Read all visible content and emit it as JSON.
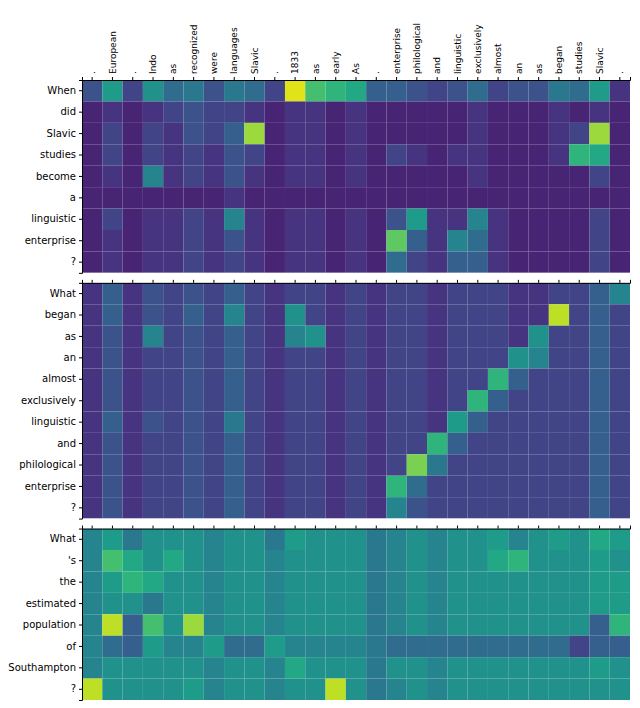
{
  "chart_data": [
    {
      "type": "heatmap",
      "x_categories": [
        ".",
        "European",
        ".",
        "Indo",
        "as",
        "recognized",
        "were",
        "languages",
        "Slavic",
        ".",
        "1833",
        "as",
        "early",
        "As",
        ".",
        "enterprise",
        "philological",
        "and",
        "linguistic",
        "exclusively",
        "almost",
        "an",
        "as",
        "began",
        "studies",
        "Slavic",
        "."
      ],
      "y_categories": [
        "When",
        "did",
        "Slavic",
        "studies",
        "become",
        "a",
        "linguistic",
        "enterprise",
        "?"
      ],
      "zlim": [
        0.0,
        1.0
      ],
      "values": [
        [
          0.25,
          0.55,
          0.2,
          0.5,
          0.35,
          0.4,
          0.25,
          0.4,
          0.35,
          0.2,
          0.95,
          0.7,
          0.65,
          0.6,
          0.3,
          0.3,
          0.25,
          0.2,
          0.25,
          0.35,
          0.2,
          0.25,
          0.25,
          0.4,
          0.35,
          0.55,
          0.15
        ],
        [
          0.1,
          0.15,
          0.1,
          0.15,
          0.2,
          0.25,
          0.2,
          0.2,
          0.15,
          0.1,
          0.15,
          0.15,
          0.1,
          0.15,
          0.1,
          0.1,
          0.1,
          0.1,
          0.1,
          0.15,
          0.1,
          0.1,
          0.1,
          0.15,
          0.1,
          0.15,
          0.1
        ],
        [
          0.1,
          0.2,
          0.1,
          0.2,
          0.15,
          0.25,
          0.2,
          0.3,
          0.85,
          0.1,
          0.15,
          0.15,
          0.1,
          0.15,
          0.1,
          0.1,
          0.1,
          0.1,
          0.1,
          0.15,
          0.1,
          0.1,
          0.1,
          0.15,
          0.2,
          0.85,
          0.1
        ],
        [
          0.1,
          0.2,
          0.1,
          0.2,
          0.15,
          0.2,
          0.15,
          0.25,
          0.2,
          0.1,
          0.15,
          0.15,
          0.1,
          0.15,
          0.1,
          0.2,
          0.15,
          0.1,
          0.15,
          0.15,
          0.1,
          0.1,
          0.1,
          0.15,
          0.65,
          0.6,
          0.1
        ],
        [
          0.1,
          0.15,
          0.1,
          0.45,
          0.15,
          0.2,
          0.15,
          0.25,
          0.15,
          0.1,
          0.15,
          0.15,
          0.1,
          0.15,
          0.1,
          0.1,
          0.1,
          0.1,
          0.1,
          0.15,
          0.1,
          0.1,
          0.1,
          0.1,
          0.1,
          0.2,
          0.1
        ],
        [
          0.1,
          0.1,
          0.1,
          0.1,
          0.1,
          0.1,
          0.1,
          0.15,
          0.1,
          0.1,
          0.1,
          0.1,
          0.1,
          0.1,
          0.1,
          0.1,
          0.1,
          0.1,
          0.1,
          0.1,
          0.1,
          0.1,
          0.1,
          0.1,
          0.1,
          0.1,
          0.1
        ],
        [
          0.1,
          0.2,
          0.1,
          0.15,
          0.15,
          0.2,
          0.15,
          0.45,
          0.15,
          0.1,
          0.15,
          0.15,
          0.1,
          0.15,
          0.1,
          0.25,
          0.55,
          0.15,
          0.15,
          0.45,
          0.15,
          0.1,
          0.1,
          0.1,
          0.1,
          0.2,
          0.1
        ],
        [
          0.1,
          0.15,
          0.1,
          0.15,
          0.15,
          0.2,
          0.15,
          0.25,
          0.15,
          0.1,
          0.15,
          0.15,
          0.1,
          0.15,
          0.1,
          0.75,
          0.3,
          0.15,
          0.45,
          0.35,
          0.15,
          0.1,
          0.1,
          0.1,
          0.1,
          0.2,
          0.1
        ],
        [
          0.1,
          0.15,
          0.1,
          0.15,
          0.15,
          0.2,
          0.15,
          0.2,
          0.15,
          0.1,
          0.15,
          0.15,
          0.1,
          0.15,
          0.1,
          0.35,
          0.2,
          0.15,
          0.3,
          0.3,
          0.15,
          0.1,
          0.1,
          0.1,
          0.1,
          0.2,
          0.1
        ]
      ]
    },
    {
      "type": "heatmap",
      "x_categories": [
        ".",
        "European",
        ".",
        "Indo",
        "as",
        "recognized",
        "were",
        "languages",
        "Slavic",
        ".",
        "1833",
        "as",
        "early",
        "As",
        ".",
        "enterprise",
        "philological",
        "and",
        "linguistic",
        "exclusively",
        "almost",
        "an",
        "as",
        "began",
        "studies",
        "Slavic",
        "."
      ],
      "y_categories": [
        "What",
        "began",
        "as",
        "an",
        "almost",
        "exclusively",
        "linguistic",
        "and",
        "philological",
        "enterprise",
        "?"
      ],
      "zlim": [
        0.0,
        1.0
      ],
      "tick_labels": "y",
      "values": [
        [
          0.15,
          0.3,
          0.15,
          0.25,
          0.2,
          0.25,
          0.2,
          0.3,
          0.2,
          0.15,
          0.2,
          0.2,
          0.15,
          0.2,
          0.15,
          0.2,
          0.2,
          0.15,
          0.2,
          0.2,
          0.2,
          0.15,
          0.15,
          0.2,
          0.2,
          0.3,
          0.45
        ],
        [
          0.15,
          0.3,
          0.15,
          0.25,
          0.2,
          0.3,
          0.2,
          0.45,
          0.2,
          0.15,
          0.5,
          0.2,
          0.15,
          0.2,
          0.15,
          0.2,
          0.2,
          0.15,
          0.2,
          0.2,
          0.2,
          0.15,
          0.15,
          0.9,
          0.2,
          0.3,
          0.2
        ],
        [
          0.15,
          0.25,
          0.15,
          0.45,
          0.2,
          0.25,
          0.2,
          0.3,
          0.2,
          0.15,
          0.45,
          0.5,
          0.15,
          0.2,
          0.15,
          0.2,
          0.2,
          0.15,
          0.2,
          0.2,
          0.2,
          0.15,
          0.5,
          0.2,
          0.2,
          0.3,
          0.2
        ],
        [
          0.15,
          0.25,
          0.15,
          0.2,
          0.2,
          0.25,
          0.2,
          0.3,
          0.2,
          0.15,
          0.2,
          0.2,
          0.15,
          0.2,
          0.15,
          0.2,
          0.2,
          0.15,
          0.2,
          0.2,
          0.2,
          0.5,
          0.45,
          0.2,
          0.2,
          0.3,
          0.2
        ],
        [
          0.15,
          0.25,
          0.15,
          0.2,
          0.2,
          0.25,
          0.2,
          0.3,
          0.2,
          0.15,
          0.2,
          0.2,
          0.15,
          0.2,
          0.15,
          0.2,
          0.2,
          0.15,
          0.2,
          0.2,
          0.65,
          0.3,
          0.2,
          0.2,
          0.2,
          0.3,
          0.2
        ],
        [
          0.15,
          0.25,
          0.15,
          0.2,
          0.2,
          0.25,
          0.2,
          0.3,
          0.2,
          0.15,
          0.2,
          0.2,
          0.15,
          0.2,
          0.15,
          0.2,
          0.2,
          0.15,
          0.2,
          0.65,
          0.3,
          0.2,
          0.2,
          0.2,
          0.2,
          0.3,
          0.2
        ],
        [
          0.15,
          0.3,
          0.15,
          0.25,
          0.2,
          0.25,
          0.2,
          0.4,
          0.2,
          0.15,
          0.2,
          0.2,
          0.15,
          0.2,
          0.15,
          0.2,
          0.2,
          0.15,
          0.55,
          0.3,
          0.2,
          0.2,
          0.2,
          0.2,
          0.2,
          0.3,
          0.2
        ],
        [
          0.15,
          0.25,
          0.15,
          0.2,
          0.2,
          0.25,
          0.2,
          0.3,
          0.2,
          0.15,
          0.2,
          0.2,
          0.15,
          0.2,
          0.15,
          0.2,
          0.2,
          0.65,
          0.3,
          0.2,
          0.2,
          0.2,
          0.2,
          0.2,
          0.2,
          0.3,
          0.2
        ],
        [
          0.15,
          0.25,
          0.15,
          0.2,
          0.2,
          0.25,
          0.2,
          0.3,
          0.2,
          0.15,
          0.2,
          0.2,
          0.15,
          0.2,
          0.15,
          0.2,
          0.8,
          0.4,
          0.2,
          0.2,
          0.2,
          0.2,
          0.2,
          0.2,
          0.2,
          0.3,
          0.2
        ],
        [
          0.15,
          0.25,
          0.15,
          0.2,
          0.2,
          0.25,
          0.2,
          0.3,
          0.2,
          0.15,
          0.2,
          0.2,
          0.15,
          0.2,
          0.15,
          0.65,
          0.35,
          0.2,
          0.2,
          0.2,
          0.2,
          0.2,
          0.2,
          0.2,
          0.2,
          0.3,
          0.2
        ],
        [
          0.15,
          0.25,
          0.15,
          0.2,
          0.2,
          0.25,
          0.2,
          0.3,
          0.2,
          0.15,
          0.2,
          0.2,
          0.15,
          0.2,
          0.15,
          0.45,
          0.25,
          0.2,
          0.2,
          0.2,
          0.2,
          0.2,
          0.2,
          0.2,
          0.2,
          0.3,
          0.2
        ]
      ]
    },
    {
      "type": "heatmap",
      "x_categories": [
        ".",
        "European",
        ".",
        "Indo",
        "as",
        "recognized",
        "were",
        "languages",
        "Slavic",
        ".",
        "1833",
        "as",
        "early",
        "As",
        ".",
        "enterprise",
        "philological",
        "and",
        "linguistic",
        "exclusively",
        "almost",
        "an",
        "as",
        "began",
        "studies",
        "Slavic",
        "."
      ],
      "y_categories": [
        "What",
        "'s",
        "the",
        "estimated",
        "population",
        "of",
        "Southampton",
        "?"
      ],
      "zlim": [
        0.0,
        1.0
      ],
      "tick_labels": "y",
      "values": [
        [
          0.45,
          0.55,
          0.4,
          0.5,
          0.5,
          0.5,
          0.45,
          0.5,
          0.5,
          0.4,
          0.55,
          0.5,
          0.5,
          0.5,
          0.4,
          0.45,
          0.5,
          0.45,
          0.5,
          0.5,
          0.55,
          0.45,
          0.5,
          0.55,
          0.5,
          0.6,
          0.55
        ],
        [
          0.45,
          0.7,
          0.6,
          0.5,
          0.6,
          0.5,
          0.45,
          0.5,
          0.5,
          0.45,
          0.5,
          0.5,
          0.5,
          0.5,
          0.4,
          0.45,
          0.5,
          0.45,
          0.5,
          0.5,
          0.6,
          0.65,
          0.5,
          0.5,
          0.5,
          0.55,
          0.5
        ],
        [
          0.45,
          0.55,
          0.65,
          0.6,
          0.5,
          0.5,
          0.45,
          0.5,
          0.5,
          0.45,
          0.5,
          0.5,
          0.5,
          0.5,
          0.4,
          0.45,
          0.5,
          0.45,
          0.5,
          0.5,
          0.5,
          0.5,
          0.5,
          0.5,
          0.5,
          0.55,
          0.55
        ],
        [
          0.45,
          0.5,
          0.5,
          0.4,
          0.5,
          0.5,
          0.45,
          0.5,
          0.5,
          0.45,
          0.5,
          0.5,
          0.5,
          0.5,
          0.4,
          0.45,
          0.5,
          0.45,
          0.5,
          0.5,
          0.5,
          0.5,
          0.5,
          0.5,
          0.5,
          0.55,
          0.55
        ],
        [
          0.45,
          0.9,
          0.3,
          0.7,
          0.5,
          0.85,
          0.45,
          0.5,
          0.5,
          0.45,
          0.5,
          0.5,
          0.5,
          0.5,
          0.4,
          0.45,
          0.5,
          0.45,
          0.5,
          0.5,
          0.5,
          0.5,
          0.5,
          0.5,
          0.5,
          0.3,
          0.65
        ],
        [
          0.45,
          0.35,
          0.3,
          0.55,
          0.45,
          0.45,
          0.55,
          0.35,
          0.35,
          0.55,
          0.45,
          0.45,
          0.45,
          0.45,
          0.4,
          0.35,
          0.35,
          0.35,
          0.35,
          0.35,
          0.35,
          0.35,
          0.35,
          0.35,
          0.2,
          0.3,
          0.3
        ],
        [
          0.45,
          0.5,
          0.5,
          0.5,
          0.5,
          0.5,
          0.45,
          0.5,
          0.5,
          0.45,
          0.6,
          0.5,
          0.5,
          0.5,
          0.4,
          0.5,
          0.5,
          0.45,
          0.5,
          0.5,
          0.5,
          0.5,
          0.5,
          0.5,
          0.5,
          0.55,
          0.5
        ],
        [
          0.9,
          0.5,
          0.5,
          0.5,
          0.5,
          0.55,
          0.45,
          0.5,
          0.5,
          0.45,
          0.5,
          0.5,
          0.9,
          0.5,
          0.4,
          0.45,
          0.5,
          0.45,
          0.5,
          0.5,
          0.5,
          0.5,
          0.5,
          0.5,
          0.5,
          0.5,
          0.5
        ]
      ]
    }
  ]
}
